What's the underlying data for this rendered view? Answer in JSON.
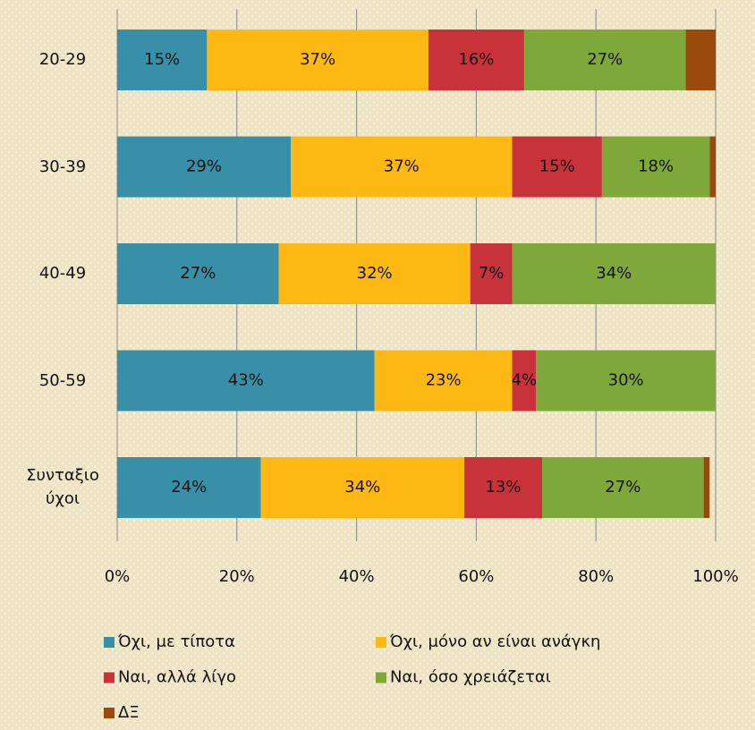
{
  "chart_data": {
    "type": "stacked-barh",
    "categories": [
      "20-29",
      "30-39",
      "40-49",
      "50-59",
      "Συνταξιούχοι"
    ],
    "series": [
      {
        "name": "Όχι, με τίποτα",
        "color": "#3a8fa8",
        "values": [
          15,
          29,
          27,
          43,
          24
        ],
        "value_labels": [
          "15%",
          "29%",
          "27%",
          "43%",
          "24%"
        ]
      },
      {
        "name": "Όχι, μόνο αν είναι ανάγκη",
        "color": "#fdb813",
        "values": [
          37,
          37,
          32,
          23,
          34
        ],
        "value_labels": [
          "37%",
          "37%",
          "32%",
          "23%",
          "34%"
        ]
      },
      {
        "name": "Ναι, αλλά λίγο",
        "color": "#c8323a",
        "values": [
          16,
          15,
          7,
          4,
          13
        ],
        "value_labels": [
          "16%",
          "15%",
          "7%",
          "4%",
          "13%"
        ]
      },
      {
        "name": "Ναι, όσο χρειάζεται",
        "color": "#7fa83a",
        "values": [
          27,
          18,
          34,
          30,
          27
        ],
        "value_labels": [
          "27%",
          "18%",
          "34%",
          "30%",
          "27%"
        ]
      },
      {
        "name": "ΔΞ",
        "color": "#9a4a0c",
        "values": [
          5,
          1,
          0,
          0,
          1
        ],
        "value_labels": [
          null,
          null,
          null,
          null,
          null
        ]
      }
    ],
    "xlim": [
      0,
      100
    ],
    "xticks": [
      {
        "value": 0,
        "label": "0%"
      },
      {
        "value": 20,
        "label": "20%"
      },
      {
        "value": 40,
        "label": "40%"
      },
      {
        "value": 60,
        "label": "60%"
      },
      {
        "value": 80,
        "label": "80%"
      },
      {
        "value": 100,
        "label": "100%"
      }
    ],
    "grid": true,
    "legend": "bottom"
  }
}
